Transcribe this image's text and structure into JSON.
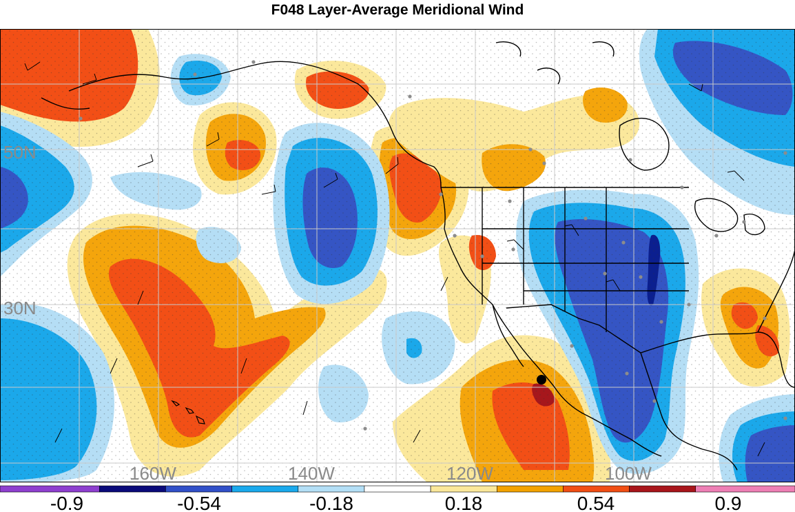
{
  "title": "F048 Layer-Average Meridional Wind",
  "lat_labels": [
    "50N",
    "30N"
  ],
  "lon_labels": [
    "160W",
    "140W",
    "120W",
    "100W"
  ],
  "legend": {
    "labels": [
      "-0.9",
      "-0.54",
      "-0.18",
      "0.18",
      "0.54",
      "0.9"
    ],
    "colors": [
      "#8e3fcf",
      "#0a0a7a",
      "#3150c8",
      "#1aa9ec",
      "#b3dff6",
      "#ffffff",
      "#fbe89a",
      "#f3a200",
      "#f14e14",
      "#a8151b",
      "#ee7fb5"
    ]
  },
  "colors": {
    "strong_neg": "#3555c4",
    "mid_neg": "#1ba8ea",
    "weak_neg": "#b5def5",
    "weak_pos": "#fbe89c",
    "mid_pos": "#f4a50c",
    "strong_pos": "#f24f16",
    "extreme_pos": "#a6171c",
    "extreme_neg": "#0b1f8f",
    "grid": "#c9c9c9",
    "label": "#8a8a8a",
    "coast": "#000000",
    "station": "#8c8c8c"
  }
}
